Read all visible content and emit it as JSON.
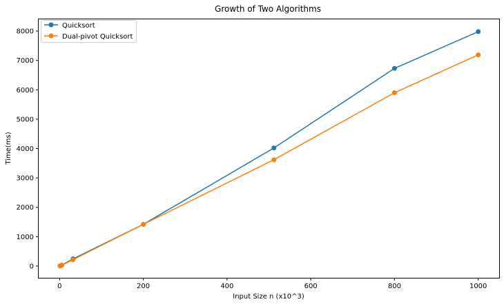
{
  "chart_data": {
    "type": "line",
    "title": "Growth of Two Algorithms",
    "xlabel": "Input Size n (x10^3)",
    "ylabel": "Time(ms)",
    "xlim": [
      -50,
      1050
    ],
    "ylim": [
      -400,
      8400
    ],
    "xticks": [
      0,
      200,
      400,
      600,
      800,
      1000
    ],
    "yticks": [
      0,
      1000,
      2000,
      3000,
      4000,
      5000,
      6000,
      7000,
      8000
    ],
    "grid": false,
    "legend_position": "upper-left",
    "series": [
      {
        "name": "Quicksort",
        "color": "#1f77b4",
        "x": [
          1,
          5,
          32,
          200,
          512,
          800,
          1000
        ],
        "y": [
          5,
          30,
          245,
          1420,
          4020,
          6730,
          7980
        ]
      },
      {
        "name": "Dual-pivot Quicksort",
        "color": "#ff7f0e",
        "x": [
          1,
          5,
          32,
          200,
          512,
          800,
          1000
        ],
        "y": [
          4,
          25,
          215,
          1420,
          3620,
          5900,
          7190
        ]
      }
    ]
  }
}
